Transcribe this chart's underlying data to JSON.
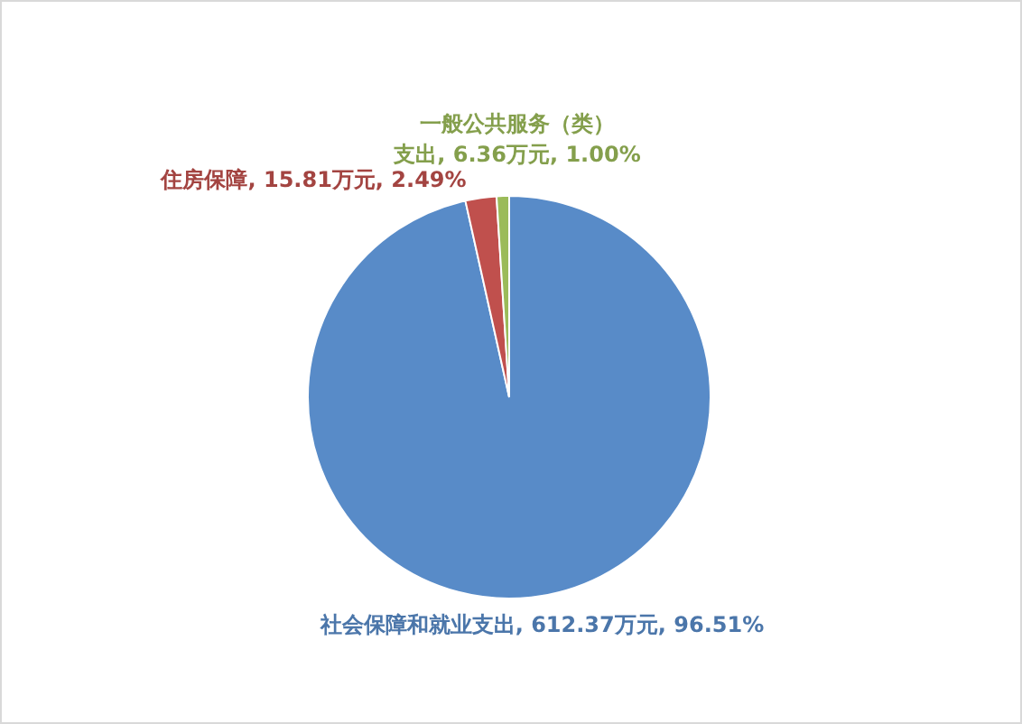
{
  "chart_data": {
    "type": "pie",
    "categories": [
      "社会保障和就业支出",
      "住房保障",
      "一般公共服务（类）支出"
    ],
    "values": [
      612.37,
      15.81,
      6.36
    ],
    "colors": [
      "#588bc8",
      "#c0504d",
      "#9bbb59"
    ],
    "value_labels": [
      "612.37万元, 96.51%",
      "15.81万元, 2.49%",
      "6.36万元, 1.00%"
    ],
    "legend": false
  }
}
